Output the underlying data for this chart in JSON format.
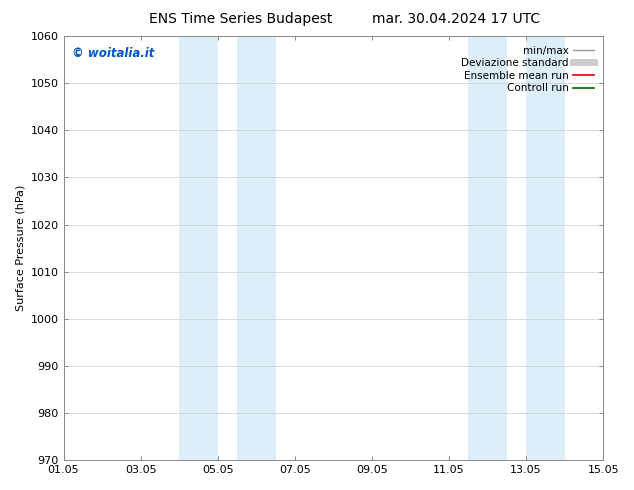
{
  "title_left": "ENS Time Series Budapest",
  "title_right": "mar. 30.04.2024 17 UTC",
  "ylabel": "Surface Pressure (hPa)",
  "ylim": [
    970,
    1060
  ],
  "yticks": [
    970,
    980,
    990,
    1000,
    1010,
    1020,
    1030,
    1040,
    1050,
    1060
  ],
  "xlim": [
    0,
    14
  ],
  "xtick_labels": [
    "01.05",
    "03.05",
    "05.05",
    "07.05",
    "09.05",
    "11.05",
    "13.05",
    "15.05"
  ],
  "xtick_positions": [
    0,
    2,
    4,
    6,
    8,
    10,
    12,
    14
  ],
  "shaded_bands": [
    {
      "x_start": 3.0,
      "x_end": 4.0,
      "color": "#ddeef9"
    },
    {
      "x_start": 4.5,
      "x_end": 5.5,
      "color": "#ddeef9"
    },
    {
      "x_start": 10.5,
      "x_end": 11.5,
      "color": "#ddeef9"
    },
    {
      "x_start": 12.0,
      "x_end": 13.0,
      "color": "#ddeef9"
    }
  ],
  "watermark_text": "© woitalia.it",
  "watermark_color": "#0055cc",
  "legend_entries": [
    {
      "label": "min/max",
      "color": "#999999",
      "lw": 1.0,
      "linestyle": "-"
    },
    {
      "label": "Deviazione standard",
      "color": "#cccccc",
      "lw": 5,
      "linestyle": "-"
    },
    {
      "label": "Ensemble mean run",
      "color": "#dd0000",
      "lw": 1.2,
      "linestyle": "-"
    },
    {
      "label": "Controll run",
      "color": "#006600",
      "lw": 1.2,
      "linestyle": "-"
    }
  ],
  "bg_color": "#ffffff",
  "grid_color": "#cccccc",
  "title_fontsize": 10,
  "label_fontsize": 8,
  "tick_fontsize": 8,
  "watermark_fontsize": 8.5,
  "legend_fontsize": 7.5
}
